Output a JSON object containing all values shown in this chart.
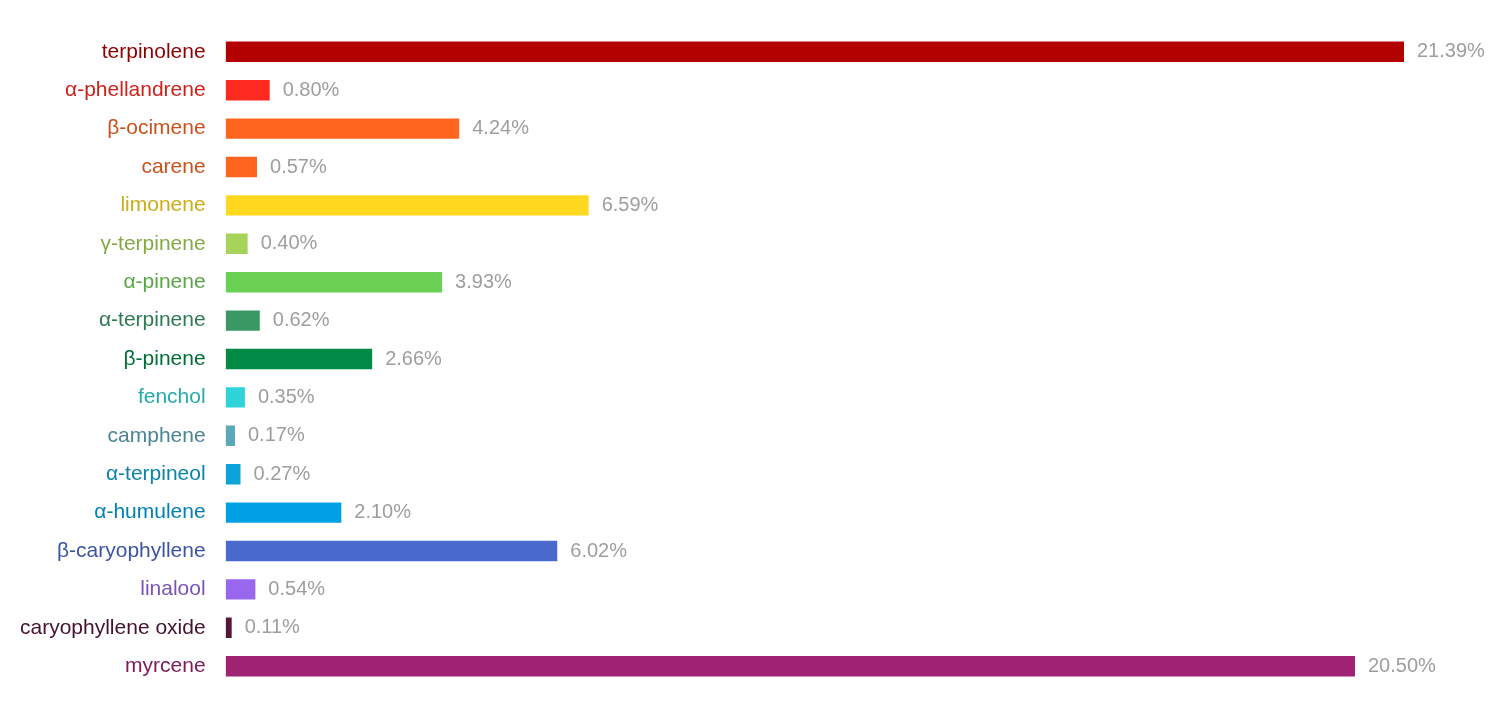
{
  "chart_data": {
    "type": "bar",
    "orientation": "horizontal",
    "grid": false,
    "legend": false,
    "categories": [
      "terpinolene",
      "α-phellandrene",
      "β-ocimene",
      "carene",
      "limonene",
      "γ-terpinene",
      "α-pinene",
      "α-terpinene",
      "β-pinene",
      "fenchol",
      "camphene",
      "α-terpineol",
      "α-humulene",
      "β-caryophyllene",
      "linalool",
      "caryophyllene oxide",
      "myrcene"
    ],
    "values": [
      21.39,
      0.8,
      4.24,
      0.57,
      6.59,
      0.4,
      3.93,
      0.62,
      2.66,
      0.35,
      0.17,
      0.27,
      2.1,
      6.02,
      0.54,
      0.11,
      20.5
    ],
    "value_labels": [
      "21.39%",
      "0.80%",
      "4.24%",
      "0.57%",
      "6.59%",
      "0.40%",
      "3.93%",
      "0.62%",
      "2.66%",
      "0.35%",
      "0.17%",
      "0.27%",
      "2.10%",
      "6.02%",
      "0.54%",
      "0.11%",
      "20.50%"
    ],
    "colors": [
      "#b30000",
      "#ff2a1f",
      "#ff651f",
      "#ff651f",
      "#ffd81f",
      "#a8d35a",
      "#6bd155",
      "#3a9865",
      "#008a45",
      "#2ed4d8",
      "#5ba8b8",
      "#0ca4d8",
      "#00a1e4",
      "#4a69cd",
      "#9966ee",
      "#551539",
      "#a02272"
    ],
    "tick_labels": "y"
  }
}
